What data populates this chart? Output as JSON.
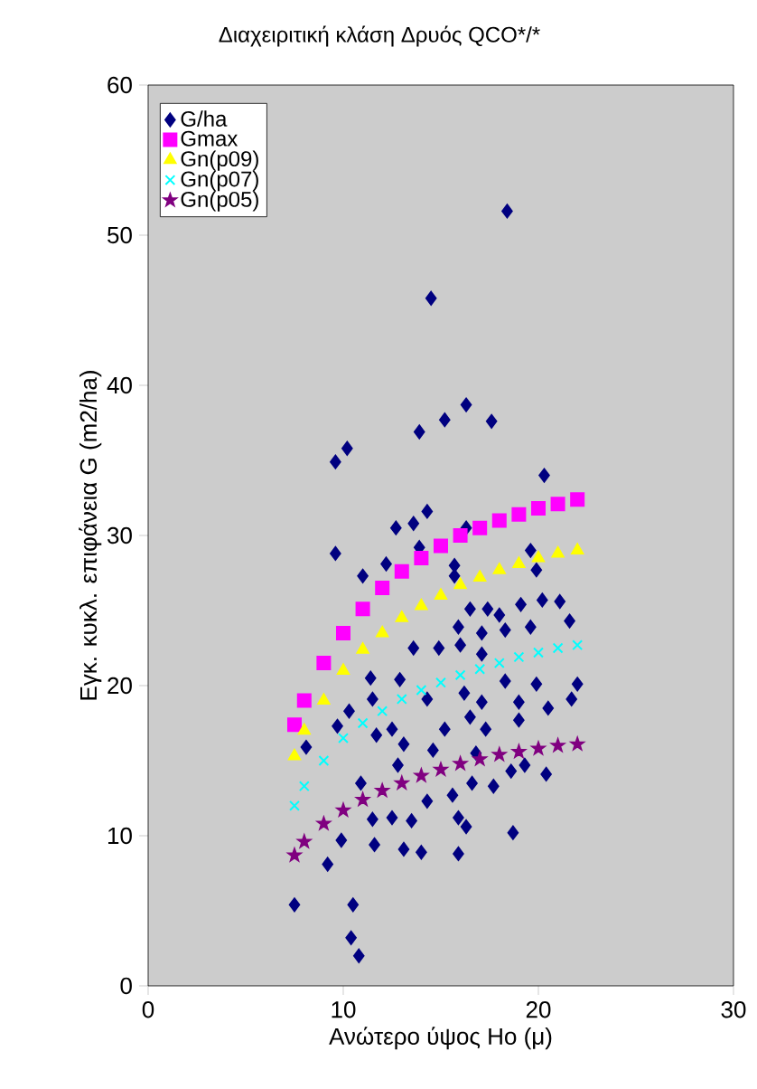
{
  "chart_data": {
    "type": "scatter",
    "title": "Διαχειριτική κλάση Δρυός QCO*/*",
    "xlabel": "Ανώτερο ύψος Ho (μ)",
    "ylabel": "Εγκ. κυκλ. επιφάνεια G (m2/ha)",
    "xlim": [
      0,
      30
    ],
    "ylim": [
      0,
      60
    ],
    "xticks": [
      0,
      10,
      20,
      30
    ],
    "yticks": [
      0,
      10,
      20,
      30,
      40,
      50,
      60
    ],
    "grid": false,
    "legend": "top left",
    "series": [
      {
        "name": "G/ha",
        "color": "#000080",
        "marker": "diamond",
        "x": [
          18.4,
          14.5,
          16.3,
          15.2,
          17.6,
          13.9,
          9.6,
          10.2,
          20.3,
          14.3,
          13.6,
          12.7,
          9.6,
          13.9,
          12.2,
          11.0,
          16.3,
          15.7,
          15.7,
          19.6,
          19.9,
          19.1,
          20.2,
          21.1,
          21.6,
          16.5,
          17.4,
          18.0,
          15.9,
          17.1,
          18.3,
          19.6,
          13.6,
          14.9,
          16.0,
          17.1,
          11.4,
          12.9,
          18.3,
          19.9,
          22.0,
          10.3,
          11.5,
          14.3,
          16.2,
          17.1,
          19.0,
          20.5,
          21.7,
          9.7,
          11.7,
          12.5,
          15.2,
          16.5,
          17.3,
          19.0,
          8.1,
          13.1,
          14.6,
          16.8,
          19.3,
          12.8,
          10.9,
          14.3,
          15.6,
          16.6,
          17.7,
          18.6,
          20.4,
          11.5,
          12.5,
          13.5,
          15.9,
          16.3,
          18.7,
          9.9,
          11.6,
          13.1,
          14.0,
          15.9,
          9.2,
          7.5,
          10.5,
          10.4,
          10.8
        ],
        "values": [
          51.6,
          45.8,
          38.7,
          37.7,
          37.6,
          36.9,
          34.9,
          35.8,
          34.0,
          31.6,
          30.8,
          30.5,
          28.8,
          29.2,
          28.1,
          27.3,
          30.5,
          28.0,
          27.3,
          29.0,
          27.7,
          25.4,
          25.7,
          25.6,
          24.3,
          25.1,
          25.1,
          24.7,
          23.9,
          23.5,
          23.7,
          23.9,
          22.5,
          22.5,
          22.7,
          22.1,
          20.5,
          20.4,
          20.3,
          20.1,
          20.1,
          18.3,
          19.1,
          19.1,
          19.5,
          18.9,
          18.9,
          18.5,
          19.1,
          17.3,
          16.7,
          17.1,
          17.1,
          17.9,
          17.1,
          17.7,
          15.9,
          16.1,
          15.7,
          15.5,
          14.7,
          14.7,
          13.5,
          12.3,
          12.7,
          13.5,
          13.3,
          14.3,
          14.1,
          11.1,
          11.2,
          11.0,
          11.2,
          10.6,
          10.2,
          9.7,
          9.4,
          9.1,
          8.9,
          8.8,
          8.1,
          5.4,
          5.4,
          3.2,
          2.0
        ]
      },
      {
        "name": "Gmax",
        "color": "#ff00ff",
        "marker": "square",
        "x": [
          7.5,
          8,
          9,
          10,
          11,
          12,
          13,
          14,
          15,
          16,
          17,
          18,
          19,
          20,
          21,
          22
        ],
        "values": [
          17.4,
          19,
          21.5,
          23.5,
          25.1,
          26.5,
          27.6,
          28.5,
          29.3,
          30,
          30.5,
          31,
          31.4,
          31.8,
          32.1,
          32.4
        ]
      },
      {
        "name": "Gn(p09)",
        "color": "#ffff00",
        "marker": "triangle",
        "x": [
          7.5,
          8,
          9,
          10,
          11,
          12,
          13,
          14,
          15,
          16,
          17,
          18,
          19,
          20,
          21,
          22
        ],
        "values": [
          15.3,
          17,
          19,
          21,
          22.4,
          23.5,
          24.5,
          25.3,
          26,
          26.7,
          27.2,
          27.7,
          28.1,
          28.5,
          28.8,
          29
        ]
      },
      {
        "name": "Gn(p07)",
        "color": "#00ffff",
        "marker": "cross",
        "x": [
          7.5,
          8,
          9,
          10,
          11,
          12,
          13,
          14,
          15,
          16,
          17,
          18,
          19,
          20,
          21,
          22
        ],
        "values": [
          12,
          13.3,
          15,
          16.5,
          17.5,
          18.3,
          19.1,
          19.7,
          20.2,
          20.7,
          21.1,
          21.5,
          21.9,
          22.2,
          22.5,
          22.7
        ]
      },
      {
        "name": "Gn(p05)",
        "color": "#800080",
        "marker": "star",
        "x": [
          7.5,
          8,
          9,
          10,
          11,
          12,
          13,
          14,
          15,
          16,
          17,
          18,
          19,
          20,
          21,
          22
        ],
        "values": [
          8.7,
          9.6,
          10.8,
          11.7,
          12.4,
          13,
          13.5,
          14,
          14.4,
          14.8,
          15.1,
          15.4,
          15.6,
          15.8,
          16,
          16.1
        ]
      }
    ]
  }
}
